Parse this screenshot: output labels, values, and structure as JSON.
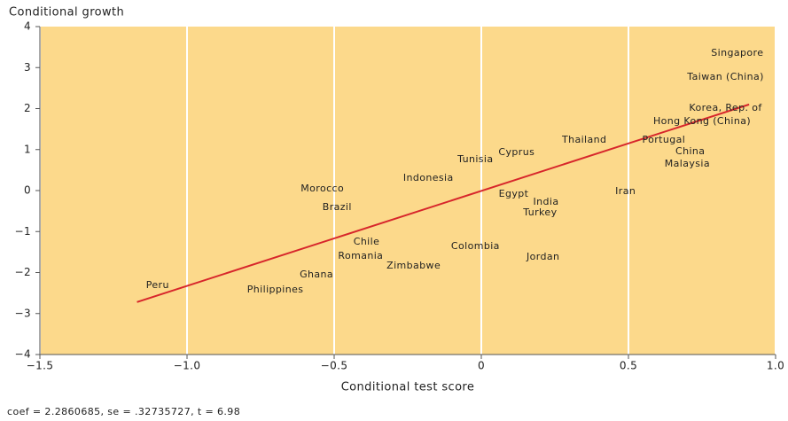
{
  "chart_data": {
    "type": "scatter",
    "title": "Conditional growth",
    "xlabel": "Conditional test score",
    "note": "coef = 2.2860685, se = .32735727, t = 6.98",
    "background": "#fcd98b",
    "grid": "x",
    "xlim": [
      -1.5,
      1.0
    ],
    "ylim": [
      -4,
      4
    ],
    "xticks": [
      {
        "value": -1.5,
        "label": "−1.5"
      },
      {
        "value": -1.0,
        "label": "−1.0"
      },
      {
        "value": -0.5,
        "label": "−0.5"
      },
      0,
      0.5,
      {
        "value": 1.0,
        "label": "1.0"
      }
    ],
    "yticks": [
      {
        "value": -4,
        "label": "−4"
      },
      {
        "value": -3,
        "label": "−3"
      },
      {
        "value": -2,
        "label": "−2"
      },
      {
        "value": -1,
        "label": "−1"
      },
      0,
      1,
      2,
      3,
      4
    ],
    "points": [
      {
        "label": "Singapore",
        "x": 0.87,
        "y": 3.35
      },
      {
        "label": "Taiwan (China)",
        "x": 0.83,
        "y": 2.77
      },
      {
        "label": "Korea, Rep. of",
        "x": 0.83,
        "y": 2.01
      },
      {
        "label": "Hong Kong (China)",
        "x": 0.75,
        "y": 1.69
      },
      {
        "label": "Portugal",
        "x": 0.62,
        "y": 1.23
      },
      {
        "label": "China",
        "x": 0.71,
        "y": 0.95
      },
      {
        "label": "Malaysia",
        "x": 0.7,
        "y": 0.65
      },
      {
        "label": "Thailand",
        "x": 0.35,
        "y": 1.23
      },
      {
        "label": "Iran",
        "x": 0.49,
        "y": -0.02
      },
      {
        "label": "Cyprus",
        "x": 0.12,
        "y": 0.93
      },
      {
        "label": "Tunisia",
        "x": -0.02,
        "y": 0.76
      },
      {
        "label": "Indonesia",
        "x": -0.18,
        "y": 0.3
      },
      {
        "label": "Egypt",
        "x": 0.11,
        "y": -0.09
      },
      {
        "label": "India",
        "x": 0.22,
        "y": -0.28
      },
      {
        "label": "Turkey",
        "x": 0.2,
        "y": -0.54
      },
      {
        "label": "Morocco",
        "x": -0.54,
        "y": 0.04
      },
      {
        "label": "Brazil",
        "x": -0.49,
        "y": -0.41
      },
      {
        "label": "Chile",
        "x": -0.39,
        "y": -1.25
      },
      {
        "label": "Romania",
        "x": -0.41,
        "y": -1.6
      },
      {
        "label": "Zimbabwe",
        "x": -0.23,
        "y": -1.84
      },
      {
        "label": "Colombia",
        "x": -0.02,
        "y": -1.36
      },
      {
        "label": "Jordan",
        "x": 0.21,
        "y": -1.62
      },
      {
        "label": "Ghana",
        "x": -0.56,
        "y": -2.05
      },
      {
        "label": "Peru",
        "x": -1.1,
        "y": -2.31
      },
      {
        "label": "Philippines",
        "x": -0.7,
        "y": -2.42
      }
    ],
    "fit_line": {
      "x": [
        -1.17,
        0.91
      ],
      "y": [
        -2.72,
        2.1
      ],
      "color": "#d7262b"
    }
  }
}
